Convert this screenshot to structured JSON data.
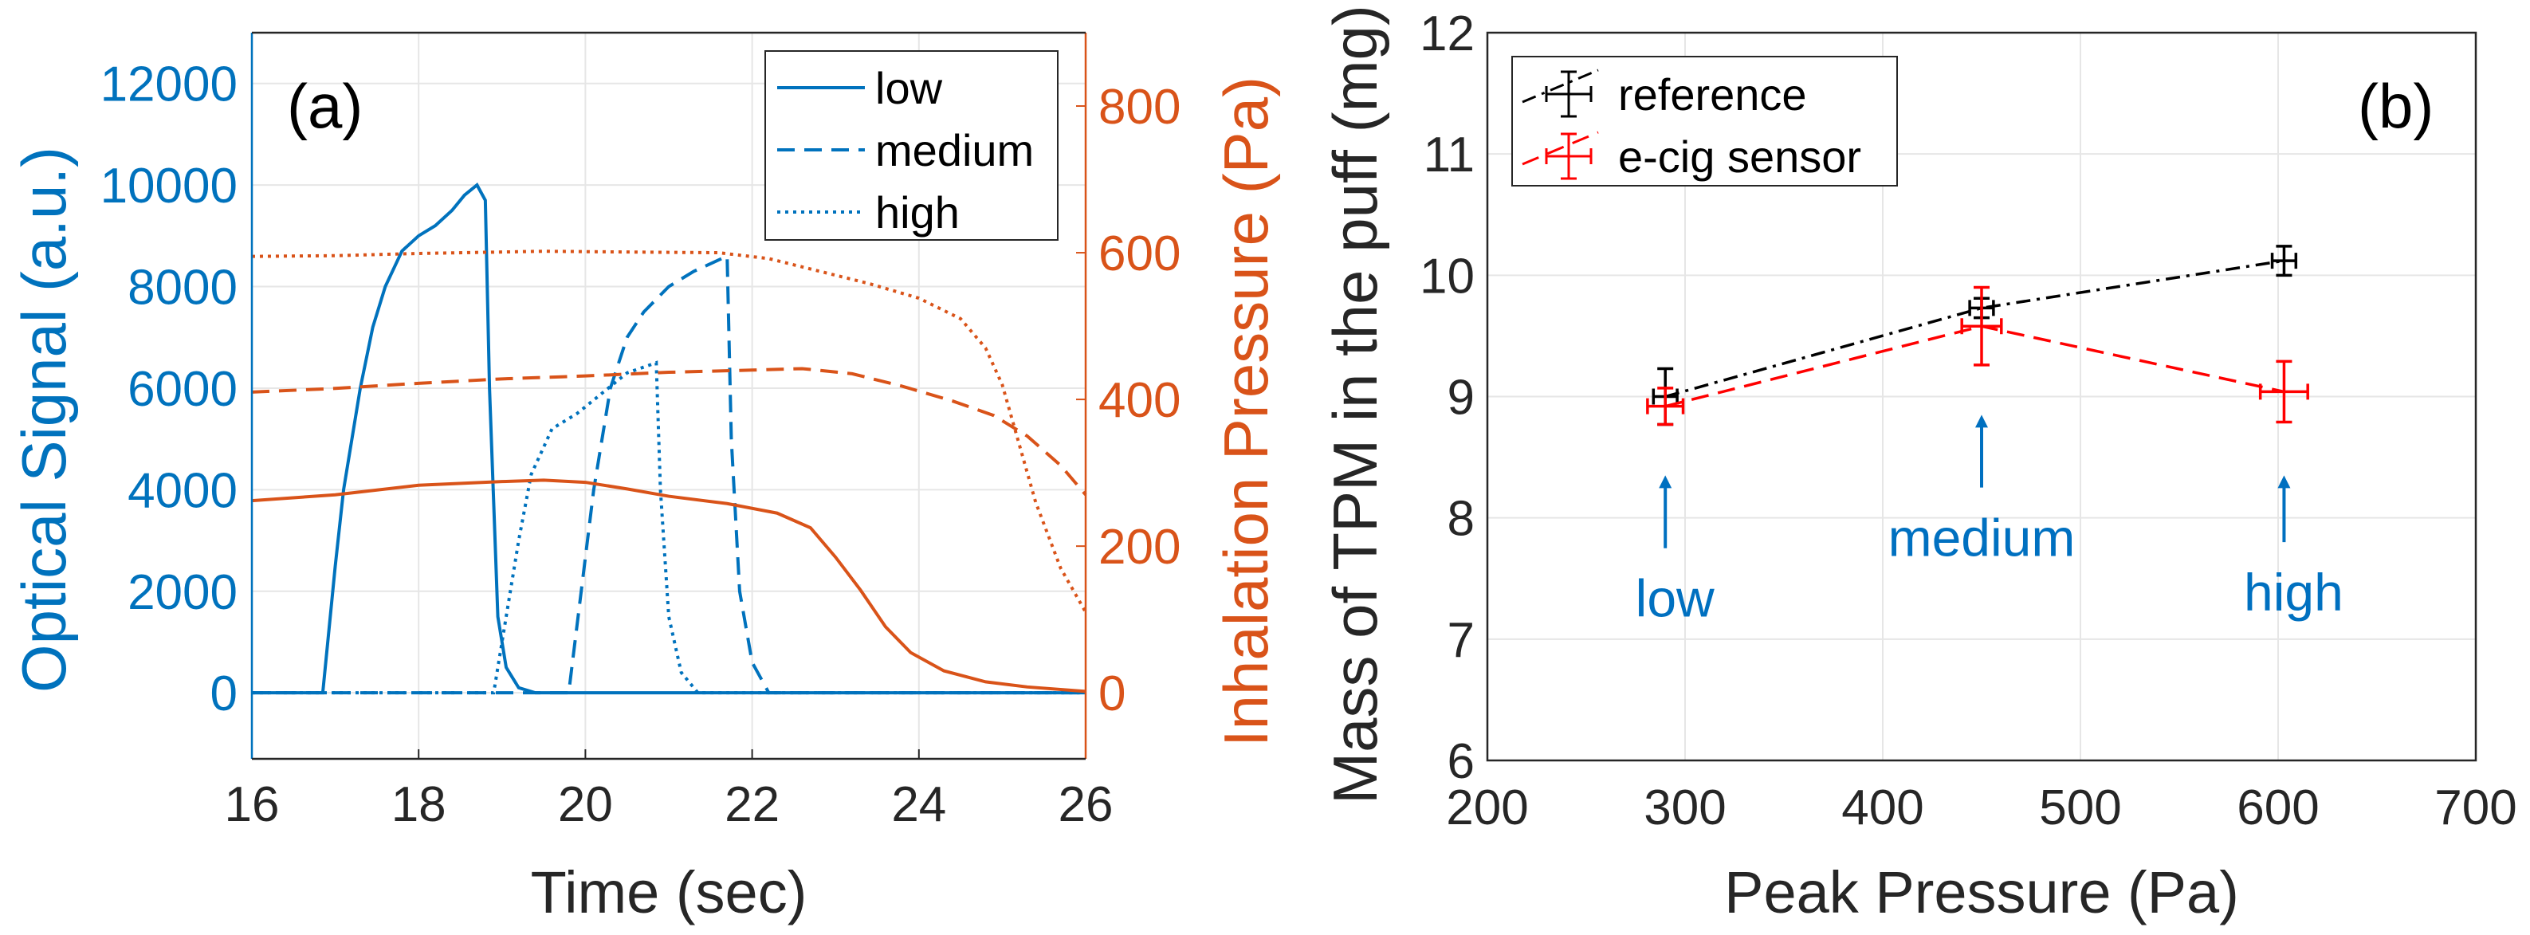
{
  "chart_data": [
    {
      "type": "line",
      "panel_label": "(a)",
      "xlabel": "Time (sec)",
      "ylabel_left": "Optical Signal (a.u.)",
      "ylabel_right": "Inhalation Pressure (Pa)",
      "xlim": [
        16,
        26
      ],
      "ylim_left": [
        -1300,
        13000
      ],
      "ylim_right": [
        -90,
        900
      ],
      "xticks": [
        "16",
        "18",
        "20",
        "22",
        "24",
        "26"
      ],
      "yticks_left": [
        "0",
        "2000",
        "4000",
        "6000",
        "8000",
        "10000",
        "12000"
      ],
      "yticks_right": [
        "0",
        "200",
        "400",
        "600",
        "800"
      ],
      "grid": true,
      "legend": {
        "placement": "top-right",
        "entries": [
          "low",
          "medium",
          "high"
        ]
      },
      "colors": {
        "left": "#0072BD",
        "right": "#D95319"
      },
      "series": [
        {
          "name": "low",
          "axis": "left",
          "style": "solid",
          "x": [
            16,
            16.85,
            17.0,
            17.1,
            17.3,
            17.45,
            17.6,
            17.8,
            18.0,
            18.2,
            18.4,
            18.55,
            18.7,
            18.8,
            18.85,
            18.95,
            19.05,
            19.2,
            19.4,
            26
          ],
          "y": [
            0,
            0,
            2500,
            4000,
            6000,
            7200,
            8000,
            8700,
            9000,
            9200,
            9500,
            9800,
            10000,
            9700,
            6000,
            1500,
            500,
            100,
            0,
            0
          ]
        },
        {
          "name": "medium",
          "axis": "left",
          "style": "dashed",
          "x": [
            16,
            19.8,
            19.95,
            20.1,
            20.3,
            20.5,
            20.7,
            21.0,
            21.3,
            21.7,
            21.75,
            21.85,
            22.0,
            22.2,
            26
          ],
          "y": [
            0,
            0,
            2000,
            4000,
            6000,
            7000,
            7500,
            8000,
            8300,
            8600,
            5000,
            2000,
            600,
            0,
            0
          ]
        },
        {
          "name": "high",
          "axis": "left",
          "style": "dotted",
          "x": [
            16,
            18.9,
            19.05,
            19.2,
            19.35,
            19.6,
            19.9,
            20.2,
            20.5,
            20.85,
            20.9,
            21.0,
            21.15,
            21.35,
            26
          ],
          "y": [
            0,
            0,
            1500,
            3000,
            4300,
            5200,
            5500,
            5900,
            6300,
            6500,
            4000,
            1500,
            400,
            0,
            0
          ]
        },
        {
          "name": "low",
          "axis": "right",
          "style": "solid",
          "x": [
            16,
            17,
            18,
            19,
            19.5,
            20,
            20.5,
            21,
            21.7,
            22.3,
            22.7,
            23.0,
            23.3,
            23.6,
            23.9,
            24.3,
            24.8,
            25.3,
            26
          ],
          "y": [
            262,
            270,
            283,
            288,
            290,
            287,
            278,
            268,
            258,
            245,
            225,
            185,
            140,
            90,
            55,
            30,
            15,
            8,
            2
          ]
        },
        {
          "name": "medium",
          "axis": "right",
          "style": "dashed",
          "x": [
            16,
            17,
            18,
            19,
            20,
            21,
            22,
            22.6,
            23.2,
            23.8,
            24.4,
            24.9,
            25.3,
            25.7,
            26
          ],
          "y": [
            410,
            415,
            422,
            428,
            432,
            437,
            440,
            442,
            435,
            418,
            398,
            378,
            350,
            310,
            270
          ]
        },
        {
          "name": "high",
          "axis": "right",
          "style": "dotted",
          "x": [
            16,
            17,
            18,
            19,
            19.5,
            20.5,
            21.6,
            22.2,
            22.8,
            23.4,
            24.0,
            24.5,
            24.8,
            25.0,
            25.2,
            25.4,
            25.7,
            26
          ],
          "y": [
            595,
            596,
            599,
            601,
            602,
            601,
            600,
            592,
            575,
            558,
            538,
            510,
            470,
            420,
            340,
            260,
            170,
            110
          ]
        }
      ]
    },
    {
      "type": "scatter",
      "panel_label": "(b)",
      "xlabel": "Peak Pressure (Pa)",
      "ylabel": "Mass of TPM in the puff (mg)",
      "xlim": [
        200,
        700
      ],
      "ylim": [
        6,
        12
      ],
      "xticks": [
        "200",
        "300",
        "400",
        "500",
        "600",
        "700"
      ],
      "yticks": [
        "6",
        "7",
        "8",
        "9",
        "10",
        "11",
        "12"
      ],
      "grid": true,
      "legend": {
        "placement": "top-left",
        "entries": [
          "reference",
          "e-cig sensor"
        ]
      },
      "series": [
        {
          "name": "reference",
          "color": "#000000",
          "style": "dashdot",
          "x": [
            290,
            450,
            603
          ],
          "y": [
            9.0,
            9.73,
            10.12
          ],
          "yerr": [
            0.23,
            0.08,
            0.12
          ],
          "xerr": [
            6,
            6,
            6
          ]
        },
        {
          "name": "e-cig sensor",
          "color": "#FF0000",
          "style": "dashed",
          "x": [
            290,
            450,
            603
          ],
          "y": [
            8.92,
            9.58,
            9.04
          ],
          "yerr": [
            0.15,
            0.32,
            0.25
          ],
          "xerr": [
            9,
            10,
            12
          ]
        }
      ],
      "annotations": [
        {
          "text": "low",
          "x": 290,
          "arrow_from": 7.75,
          "arrow_to": 8.35,
          "label_y": 7.35
        },
        {
          "text": "medium",
          "x": 450,
          "arrow_from": 8.25,
          "arrow_to": 8.85,
          "label_y": 7.85
        },
        {
          "text": "high",
          "x": 603,
          "arrow_from": 7.8,
          "arrow_to": 8.35,
          "label_y": 7.4
        }
      ],
      "annotation_color": "#0070C0"
    }
  ]
}
